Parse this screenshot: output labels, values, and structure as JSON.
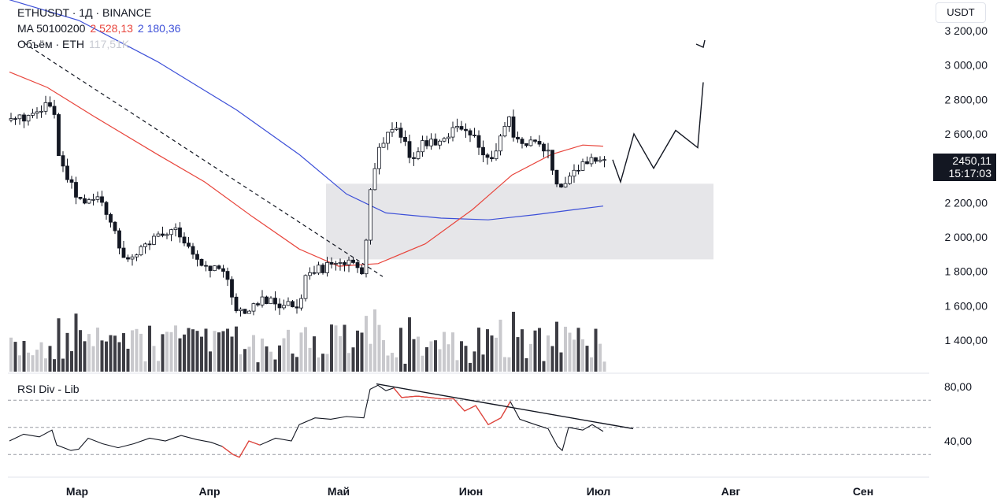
{
  "header": {
    "symbol_line": "ETHUSDT · 1Д · BINANCE",
    "ma_label": "MA 50100200",
    "ma_value_1": "2 528,13",
    "ma_value_2": "2 180,36",
    "volume_label": "Объём · ETH",
    "volume_value": "117,51K"
  },
  "currency_button": "USDT",
  "last_price": {
    "value": "2450,11",
    "timer": "15:17:03"
  },
  "colors": {
    "up": "#131722",
    "down": "#131722",
    "ma_red": "#e8453c",
    "ma_blue": "#3c4fd8",
    "zone": "#e6e6e9",
    "rsi_line": "#131722",
    "rsi_highlight": "#e8453c",
    "volume": "#3d3d44",
    "volume_light": "#c9c9cd"
  },
  "chart_data": {
    "type": "candlestick",
    "price_axis": {
      "ticks": [
        "3 200,00",
        "3 000,00",
        "2 800,00",
        "2 600,00",
        "2 400,00",
        "2 200,00",
        "2 000,00",
        "1 800,00",
        "1 600,00",
        "1 400,00"
      ],
      "tick_values": [
        3200,
        3000,
        2800,
        2600,
        2400,
        2200,
        2000,
        1800,
        1600,
        1400
      ]
    },
    "time_axis": {
      "labels": [
        "Мар",
        "Апр",
        "Май",
        "Июн",
        "Июл",
        "Авг",
        "Сен"
      ]
    },
    "ma_series": [
      {
        "name": "MA 50",
        "values_by_month": {
          "Мар": 3000,
          "Апр": 2300,
          "Май": 1830,
          "Июн": 2120,
          "Июл": 2500
        }
      },
      {
        "name": "MA 100",
        "values_by_month": {
          "Мар": 3350,
          "Апр": 2900,
          "Май": 2180,
          "Июн": 2090,
          "Июл": 2175
        }
      }
    ],
    "demand_zone": {
      "low": 1870,
      "high": 2310,
      "from": "Май",
      "to": "Июл+"
    },
    "projection_path": [
      2450,
      2320,
      2600,
      2400,
      2620,
      2520,
      2900
    ],
    "rsi": {
      "title": "RSI Div - Lib",
      "ticks": [
        "80,00",
        "40,00"
      ],
      "tick_values": [
        80,
        40
      ],
      "levels": [
        70,
        50,
        30
      ]
    }
  }
}
